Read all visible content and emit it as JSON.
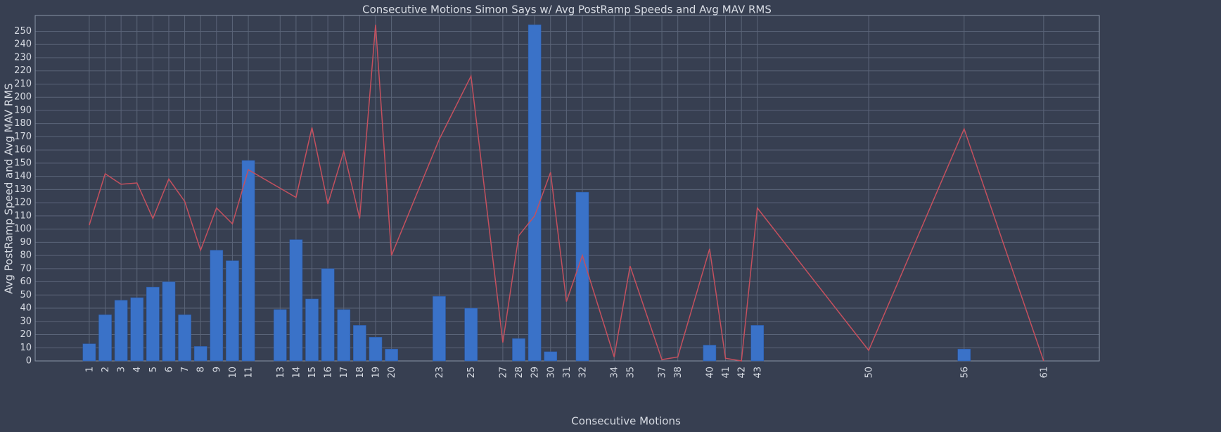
{
  "chart_data": {
    "type": "bar",
    "title": "Consecutive Motions Simon Says w/ Avg PostRamp Speeds and Avg MAV RMS",
    "xlabel": "Consecutive Motions",
    "ylabel": "Avg PostRamp Speed and Avg MAV RMS",
    "x": [
      1,
      2,
      3,
      4,
      5,
      6,
      7,
      8,
      9,
      10,
      11,
      13,
      14,
      15,
      16,
      17,
      18,
      19,
      20,
      23,
      25,
      27,
      28,
      29,
      30,
      31,
      32,
      34,
      35,
      37,
      38,
      40,
      41,
      42,
      43,
      50,
      56,
      61
    ],
    "series": [
      {
        "type": "bar",
        "color": "#3a72c8",
        "values": [
          13,
          35,
          46,
          48,
          56,
          60,
          35,
          11,
          84,
          76,
          152,
          39,
          92,
          47,
          70,
          39,
          27,
          18,
          9,
          49,
          40,
          0,
          17,
          255,
          7,
          0,
          128,
          0,
          0,
          0,
          0,
          12,
          0,
          0,
          27,
          0,
          9,
          0
        ]
      },
      {
        "type": "line",
        "color": "#c4505e",
        "values": [
          103,
          142,
          134,
          135,
          108,
          138,
          121,
          84,
          116,
          104,
          145,
          131,
          124,
          177,
          119,
          159,
          108,
          255,
          80,
          168,
          216,
          14,
          95,
          110,
          143,
          45,
          80,
          3,
          72,
          1,
          3,
          85,
          2,
          0,
          116,
          8,
          176,
          0
        ]
      }
    ],
    "xlim": [
      -2.4,
      64.5
    ],
    "xticks": [
      1,
      2,
      3,
      4,
      5,
      6,
      7,
      8,
      9,
      10,
      11,
      13,
      14,
      15,
      16,
      17,
      18,
      19,
      20,
      23,
      25,
      27,
      28,
      29,
      30,
      31,
      32,
      34,
      35,
      37,
      38,
      40,
      41,
      42,
      43,
      50,
      56,
      61
    ],
    "ylim": [
      0,
      262
    ],
    "yticks": [
      0,
      10,
      20,
      30,
      40,
      50,
      60,
      70,
      80,
      90,
      100,
      110,
      120,
      130,
      140,
      150,
      160,
      170,
      180,
      190,
      200,
      210,
      220,
      230,
      240,
      250
    ],
    "grid": true
  }
}
